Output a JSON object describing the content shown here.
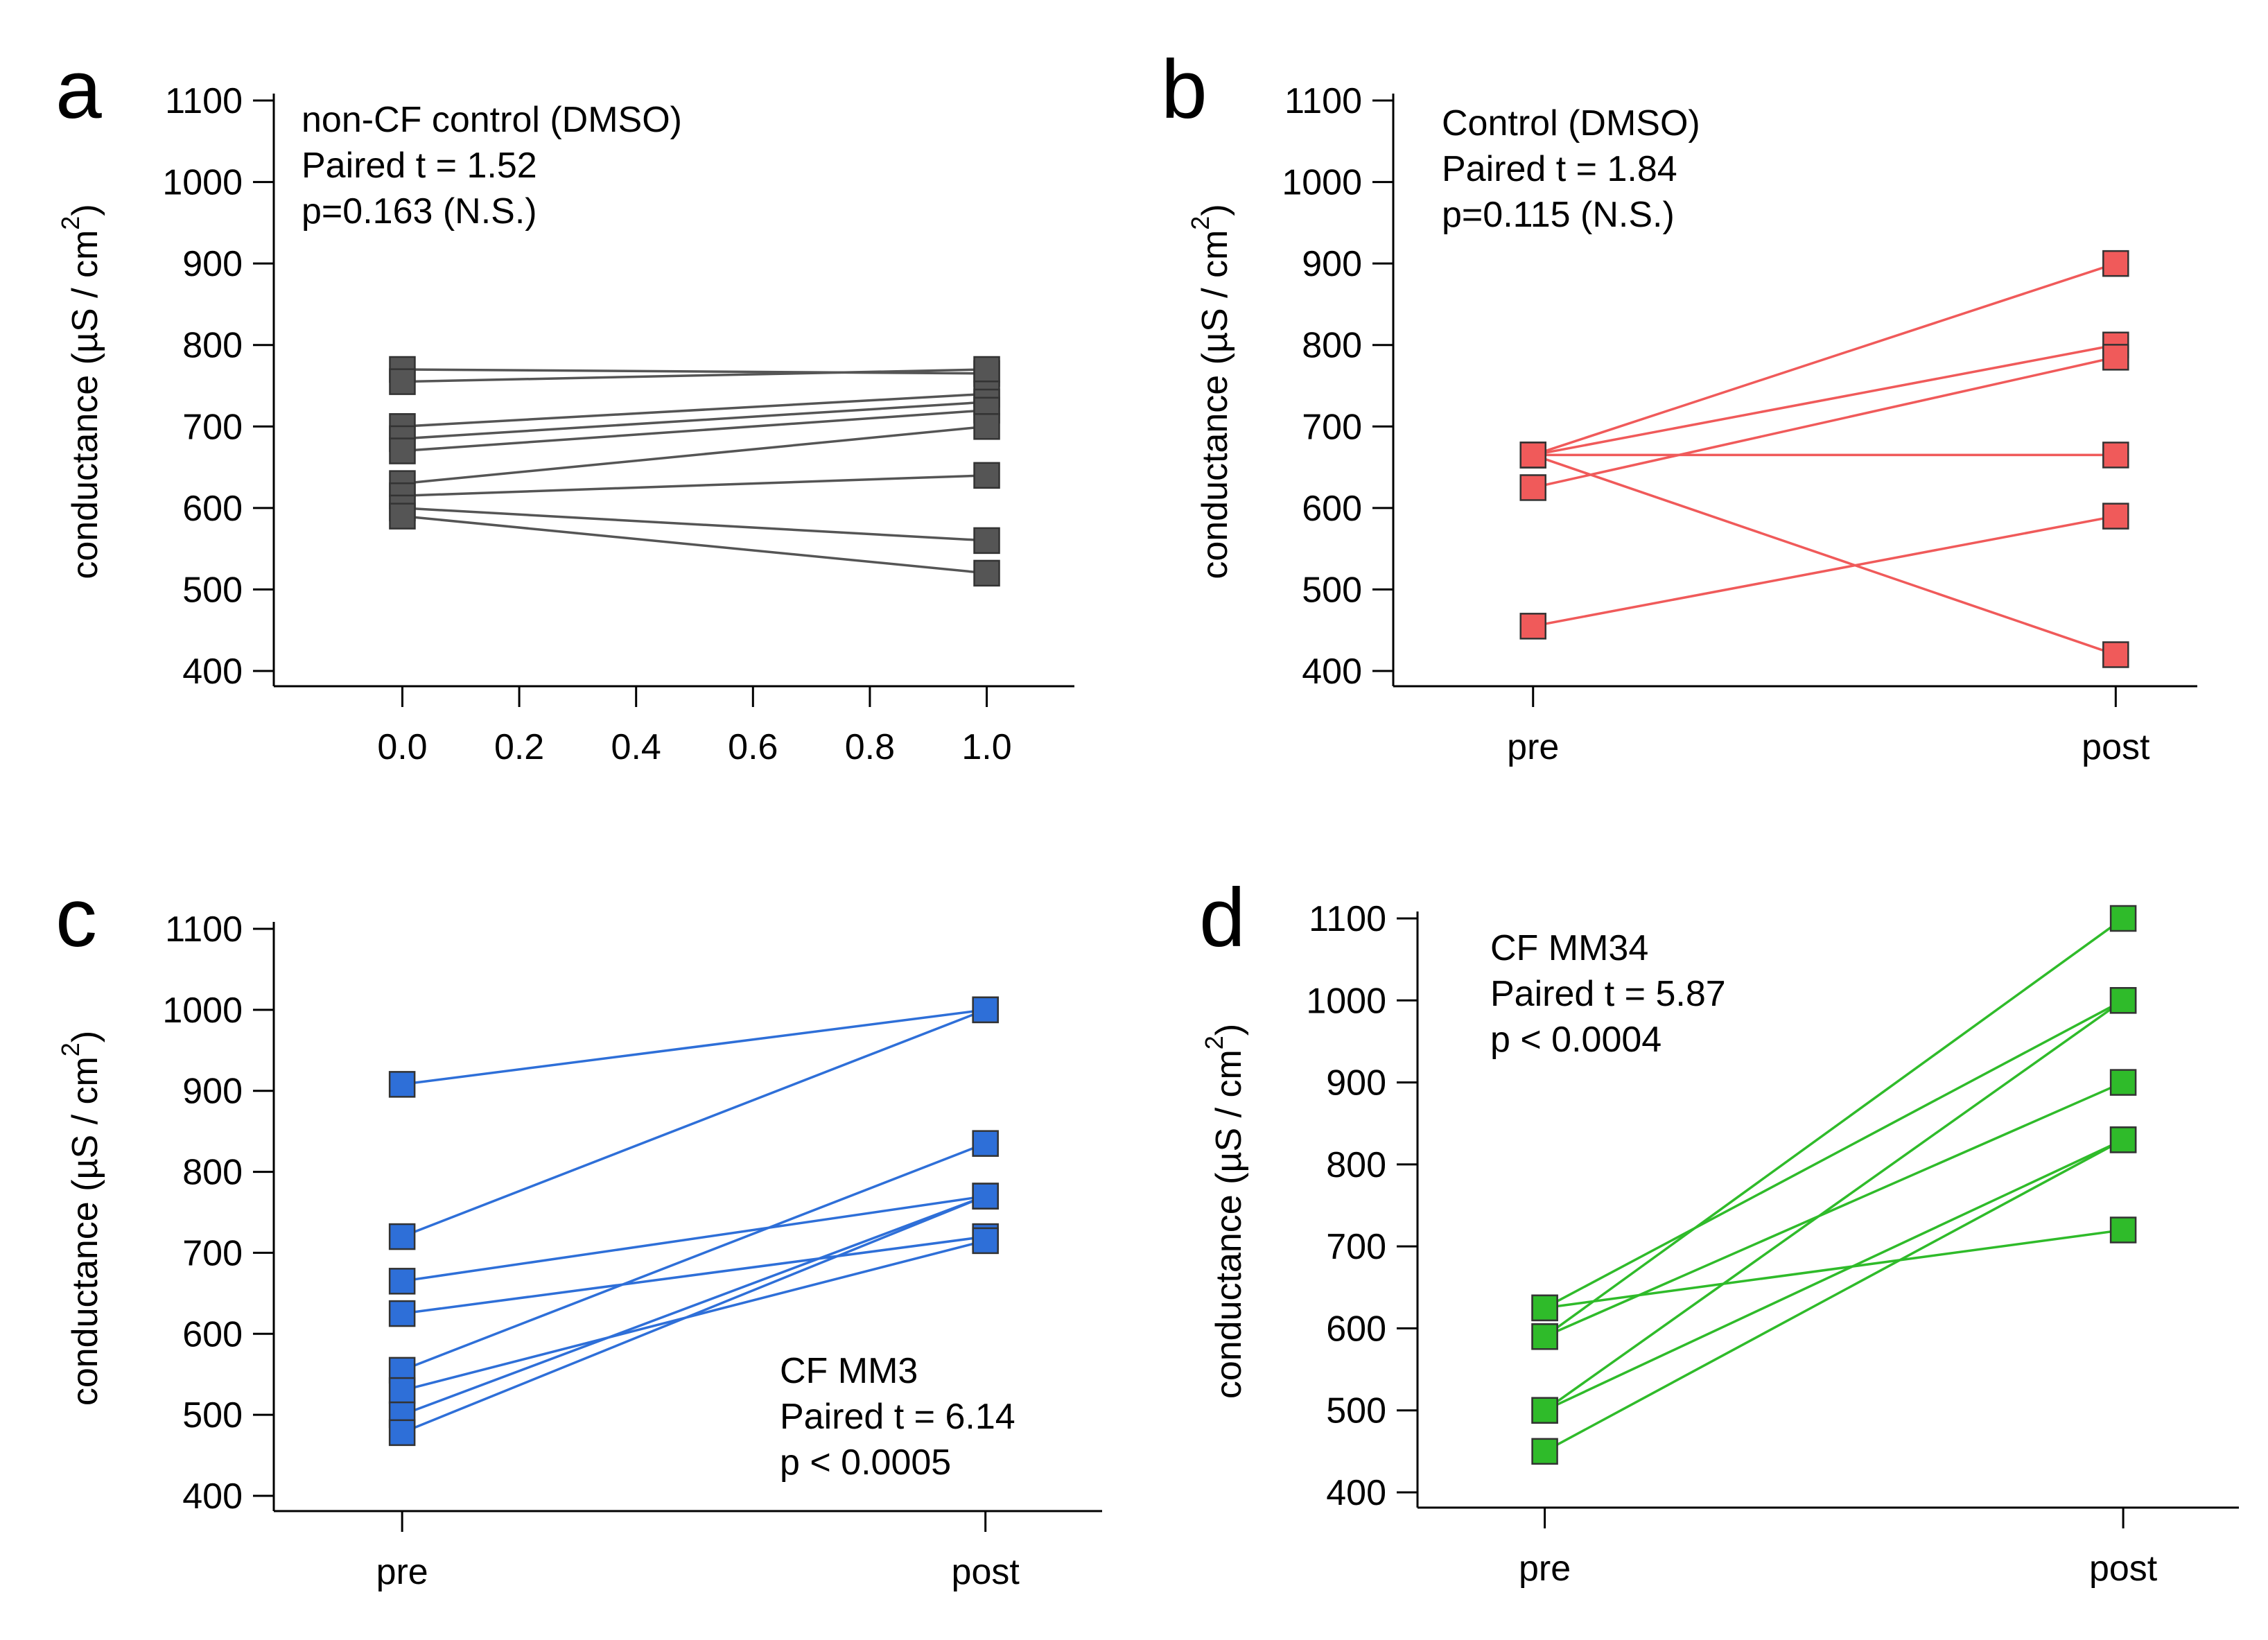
{
  "chart_data": [
    {
      "panel": "a",
      "type": "line",
      "color": "#555555",
      "xlabel": "",
      "ylabel": "conductance (µS / cm²)",
      "ylabel_main": "conductance (µS / cm",
      "ylabel_sup": "2",
      "ylabel_end": ")",
      "ylim": [
        400,
        1100
      ],
      "yticks": [
        400,
        500,
        600,
        700,
        800,
        900,
        1000,
        1100
      ],
      "x_numeric": true,
      "xlim": [
        -0.22,
        1.15
      ],
      "xticks": [
        0.0,
        0.2,
        0.4,
        0.6,
        0.8,
        1.0
      ],
      "xtick_labels": [
        "0.0",
        "0.2",
        "0.4",
        "0.6",
        "0.8",
        "1.0"
      ],
      "annotation": [
        "non-CF control (DMSO)",
        "Paired t = 1.52",
        "p=0.163 (N.S.)"
      ],
      "annotation_position": "top-left",
      "pairs": [
        [
          770,
          765
        ],
        [
          755,
          770
        ],
        [
          700,
          740
        ],
        [
          685,
          730
        ],
        [
          670,
          720
        ],
        [
          630,
          700
        ],
        [
          615,
          640
        ],
        [
          600,
          560
        ],
        [
          590,
          520
        ]
      ]
    },
    {
      "panel": "b",
      "type": "line",
      "color": "#f05a5a",
      "xlabel": "",
      "ylabel": "conductance (µS / cm²)",
      "ylabel_main": "conductance (µS / cm",
      "ylabel_sup": "2",
      "ylabel_end": ")",
      "ylim": [
        400,
        1100
      ],
      "yticks": [
        400,
        500,
        600,
        700,
        800,
        900,
        1000,
        1100
      ],
      "x_numeric": false,
      "xlim": [
        -0.24,
        1.14
      ],
      "categories": [
        "pre",
        "post"
      ],
      "annotation": [
        "Control (DMSO)",
        "Paired t = 1.84",
        "p=0.115 (N.S.)"
      ],
      "annotation_position": "top-left",
      "pairs": [
        [
          665,
          900
        ],
        [
          665,
          800
        ],
        [
          625,
          785
        ],
        [
          665,
          665
        ],
        [
          665,
          420
        ],
        [
          455,
          590
        ]
      ]
    },
    {
      "panel": "c",
      "type": "line",
      "color": "#2e6fd8",
      "xlabel": "",
      "ylabel": "conductance (µS / cm²)",
      "ylabel_main": "conductance (µS / cm",
      "ylabel_sup": "2",
      "ylabel_end": ")",
      "ylim": [
        400,
        1100
      ],
      "yticks": [
        400,
        500,
        600,
        700,
        800,
        900,
        1000,
        1100
      ],
      "x_numeric": false,
      "xlim": [
        -0.22,
        1.2
      ],
      "categories": [
        "pre",
        "post"
      ],
      "annotation": [
        "CF MM3",
        "Paired t = 6.14",
        "p < 0.0005"
      ],
      "annotation_position": "bottom-right",
      "pairs": [
        [
          908,
          1000
        ],
        [
          720,
          1000
        ],
        [
          665,
          770
        ],
        [
          625,
          720
        ],
        [
          555,
          835
        ],
        [
          530,
          715
        ],
        [
          500,
          770
        ],
        [
          478,
          770
        ]
      ]
    },
    {
      "panel": "d",
      "type": "line",
      "color": "#2fbb2a",
      "xlabel": "",
      "ylabel": "conductance (µS / cm²)",
      "ylabel_main": "conductance (µS / cm",
      "ylabel_sup": "2",
      "ylabel_end": ")",
      "ylim": [
        400,
        1100
      ],
      "yticks": [
        400,
        500,
        600,
        700,
        800,
        900,
        1000,
        1100
      ],
      "x_numeric": false,
      "xlim": [
        -0.22,
        1.2
      ],
      "categories": [
        "pre",
        "post"
      ],
      "annotation": [
        "CF MM34",
        "Paired t = 5.87",
        "p < 0.0004"
      ],
      "annotation_position": "top-left",
      "pairs": [
        [
          625,
          1000
        ],
        [
          590,
          1100
        ],
        [
          590,
          900
        ],
        [
          500,
          1000
        ],
        [
          450,
          830
        ],
        [
          500,
          830
        ],
        [
          625,
          720
        ]
      ]
    }
  ]
}
